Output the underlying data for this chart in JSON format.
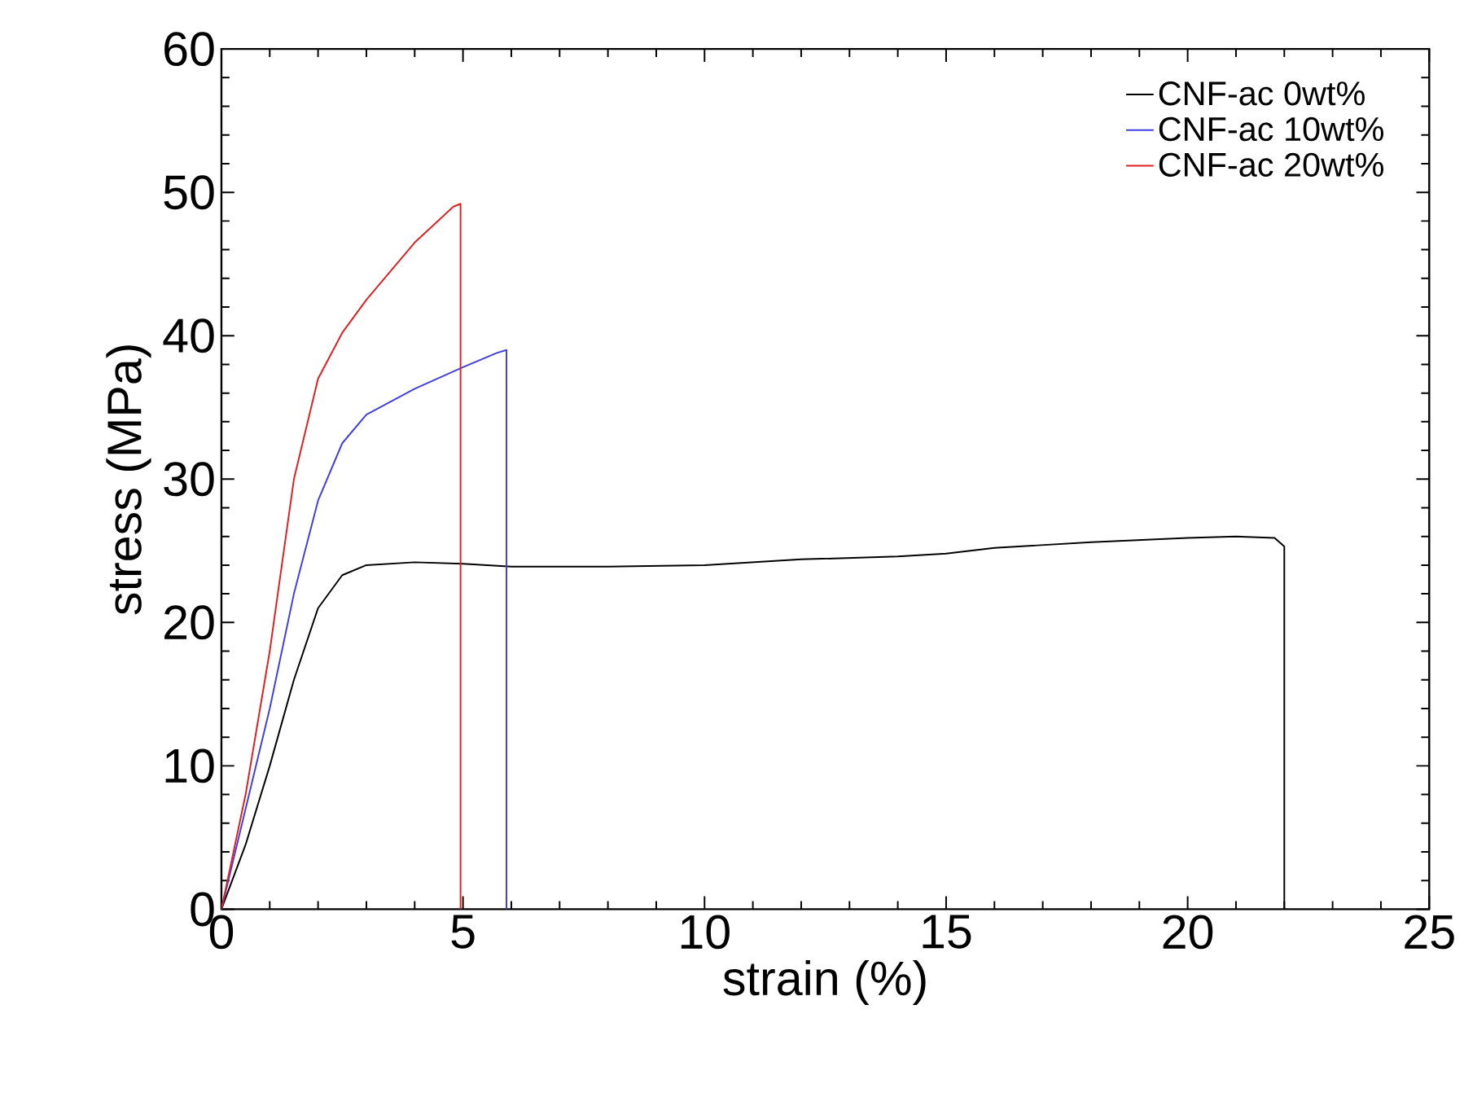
{
  "chart_data": {
    "type": "line",
    "xlabel": "strain (%)",
    "ylabel": "stress (MPa)",
    "xlim": [
      0,
      25
    ],
    "ylim": [
      0,
      60
    ],
    "xticks": [
      0,
      5,
      10,
      15,
      20,
      25
    ],
    "yticks": [
      0,
      10,
      20,
      30,
      40,
      50,
      60
    ],
    "legend": "top right",
    "grid": false,
    "marker": "none",
    "line_style": "solid",
    "series": [
      {
        "name": "CNF-ac 0wt%",
        "color": "#000000",
        "x": [
          0,
          0.5,
          1,
          1.5,
          2,
          2.5,
          3,
          4,
          5,
          6,
          8,
          10,
          12,
          14,
          15,
          16,
          18,
          20,
          21,
          21.8,
          22,
          22
        ],
        "values": [
          0,
          4.5,
          10,
          16,
          21,
          23.3,
          24,
          24.2,
          24.1,
          23.9,
          23.9,
          24,
          24.4,
          24.6,
          24.8,
          25.2,
          25.6,
          25.9,
          26,
          25.9,
          25.3,
          0
        ]
      },
      {
        "name": "CNF-ac 10wt%",
        "color": "#4040e0",
        "x": [
          0,
          0.5,
          1,
          1.5,
          2,
          2.5,
          3,
          4,
          5,
          5.7,
          5.9,
          5.9
        ],
        "values": [
          0,
          7,
          14,
          22,
          28.5,
          32.5,
          34.5,
          36.3,
          37.8,
          38.8,
          39,
          0
        ]
      },
      {
        "name": "CNF-ac 20wt%",
        "color": "#e02020",
        "x": [
          0,
          0.5,
          1,
          1.5,
          2,
          2.5,
          3,
          4,
          4.8,
          4.95,
          4.95
        ],
        "values": [
          0,
          8,
          18,
          30,
          37,
          40.2,
          42.5,
          46.5,
          49,
          49.2,
          0
        ]
      }
    ]
  }
}
